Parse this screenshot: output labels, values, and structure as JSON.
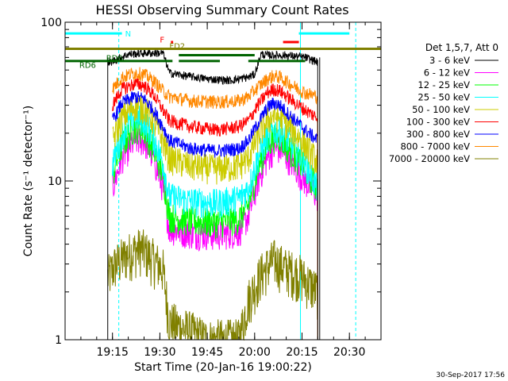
{
  "chart_data": {
    "type": "line",
    "title": "HESSI Observing Summary Count Rates",
    "xlabel": "Start Time (20-Jan-16 19:00:22)",
    "ylabel": "Count Rate (s⁻¹ detector⁻¹)",
    "yscale": "log",
    "ylim": [
      1,
      100
    ],
    "xlim_minutes": [
      0,
      100
    ],
    "x_ticks": [
      {
        "min": 15,
        "label": "19:15"
      },
      {
        "min": 30,
        "label": "19:30"
      },
      {
        "min": 45,
        "label": "19:45"
      },
      {
        "min": 60,
        "label": "20:00"
      },
      {
        "min": 75,
        "label": "20:15"
      },
      {
        "min": 90,
        "label": "20:30"
      }
    ],
    "y_ticks": [
      {
        "value": 1,
        "label": "1"
      },
      {
        "value": 10,
        "label": "10"
      },
      {
        "value": 100,
        "label": "100"
      }
    ],
    "legend_title": "Det 1,5,7, Att 0",
    "legend_position": "right",
    "data_start_min": 13.5,
    "data_end_min": 80.6,
    "series": [
      {
        "name": "3 - 6 keV",
        "color": "#000000",
        "x": [
          13.5,
          20,
          26,
          31,
          33,
          38,
          45,
          52,
          58,
          60,
          62,
          64,
          70,
          76,
          78,
          80
        ],
        "y": [
          55,
          63,
          64,
          64,
          48,
          46,
          44,
          43,
          45,
          47,
          63,
          62,
          62,
          60,
          58,
          56
        ]
      },
      {
        "name": "6 - 12 keV",
        "color": "#ff00ff",
        "x": [
          15,
          18,
          22,
          25,
          28,
          31,
          33,
          40,
          48,
          55,
          58,
          61,
          64,
          66,
          68,
          72,
          76,
          80
        ],
        "y": [
          9,
          14,
          18,
          18,
          14,
          9,
          5,
          4.7,
          4.6,
          4.8,
          6,
          10,
          14,
          16,
          16,
          13,
          10,
          8
        ]
      },
      {
        "name": "12 - 25 keV",
        "color": "#00ff00",
        "x": [
          15,
          18,
          22,
          25,
          28,
          31,
          33,
          40,
          48,
          55,
          58,
          61,
          64,
          66,
          68,
          72,
          76,
          80
        ],
        "y": [
          11,
          17,
          22,
          21,
          16,
          11,
          6,
          5.6,
          5.5,
          5.8,
          7,
          12,
          17,
          19,
          19,
          15,
          12,
          9
        ]
      },
      {
        "name": "25 - 50 keV",
        "color": "#00ffff",
        "x": [
          15,
          18,
          22,
          25,
          28,
          31,
          33,
          40,
          48,
          55,
          58,
          61,
          64,
          66,
          68,
          72,
          76,
          80
        ],
        "y": [
          13,
          20,
          26,
          24,
          19,
          13,
          8,
          7.5,
          7.3,
          7.8,
          9,
          14,
          19,
          21,
          21,
          17,
          13,
          9
        ]
      },
      {
        "name": "50 - 100 keV",
        "color": "#cccc00",
        "x": [
          15,
          18,
          22,
          25,
          28,
          31,
          33,
          40,
          48,
          55,
          58,
          61,
          64,
          66,
          68,
          72,
          76,
          80
        ],
        "y": [
          18,
          25,
          30,
          29,
          24,
          18,
          14,
          12.5,
          12,
          12.5,
          14,
          19,
          24,
          26,
          25,
          21,
          17,
          13
        ]
      },
      {
        "name": "100 - 300 keV",
        "color": "#ff0000",
        "x": [
          15,
          18,
          22,
          25,
          28,
          31,
          33,
          40,
          48,
          55,
          58,
          61,
          64,
          66,
          68,
          72,
          76,
          80
        ],
        "y": [
          30,
          38,
          41,
          40,
          35,
          28,
          24,
          22,
          21,
          22,
          24,
          30,
          36,
          38,
          37,
          32,
          28,
          25
        ]
      },
      {
        "name": "300 - 800 keV",
        "color": "#0000ff",
        "x": [
          15,
          18,
          22,
          25,
          28,
          31,
          33,
          40,
          48,
          55,
          58,
          61,
          64,
          66,
          68,
          72,
          76,
          80
        ],
        "y": [
          24,
          31,
          34,
          33,
          28,
          22,
          18,
          16,
          15.5,
          16,
          18,
          23,
          29,
          31,
          30,
          25,
          21,
          18
        ]
      },
      {
        "name": "800 - 7000 keV",
        "color": "#ff8800",
        "x": [
          15,
          18,
          22,
          25,
          28,
          31,
          33,
          40,
          48,
          55,
          58,
          61,
          64,
          66,
          68,
          72,
          76,
          80
        ],
        "y": [
          38,
          45,
          48,
          47,
          43,
          37,
          34,
          32,
          31.5,
          32,
          34,
          39,
          44,
          46,
          45,
          40,
          36,
          34
        ]
      },
      {
        "name": "7000 - 20000 keV",
        "color": "#808000",
        "x": [
          13.5,
          16,
          20,
          24,
          28,
          31,
          33,
          45,
          55,
          58,
          62,
          66,
          70,
          74,
          78,
          80
        ],
        "y": [
          2.5,
          3,
          3.5,
          3.8,
          3.2,
          2.8,
          1.3,
          1.0,
          1.0,
          1.8,
          2.6,
          3.2,
          2.8,
          2.6,
          2.2,
          2
        ]
      }
    ],
    "flag_bars": [
      {
        "label": "N",
        "color": "#00ffff",
        "y": 85,
        "segments": [
          [
            0,
            18
          ],
          [
            74,
            90
          ]
        ]
      },
      {
        "label": "F",
        "color": "#ff0000",
        "y": 75,
        "segments": [
          [
            33.5,
            34.2
          ],
          [
            69,
            74
          ]
        ]
      },
      {
        "label": "FD2",
        "color": "#808000",
        "y": 68,
        "segments": [
          [
            0,
            100
          ]
        ]
      },
      {
        "label": "RD6",
        "color": "#006400",
        "y": 57,
        "segments": [
          [
            0,
            34
          ],
          [
            36,
            49
          ],
          [
            58,
            76
          ]
        ]
      },
      {
        "label": "RD6",
        "color": "#006400",
        "y": 62,
        "segments": [
          [
            36,
            60
          ]
        ]
      }
    ],
    "vlines": [
      {
        "min": 17,
        "color": "#00ffff",
        "style": "dashed"
      },
      {
        "min": 74.5,
        "color": "#00ffff",
        "style": "solid"
      },
      {
        "min": 92,
        "color": "#00ffff",
        "style": "dashed"
      }
    ],
    "footer_date": "30-Sep-2017 17:56"
  }
}
